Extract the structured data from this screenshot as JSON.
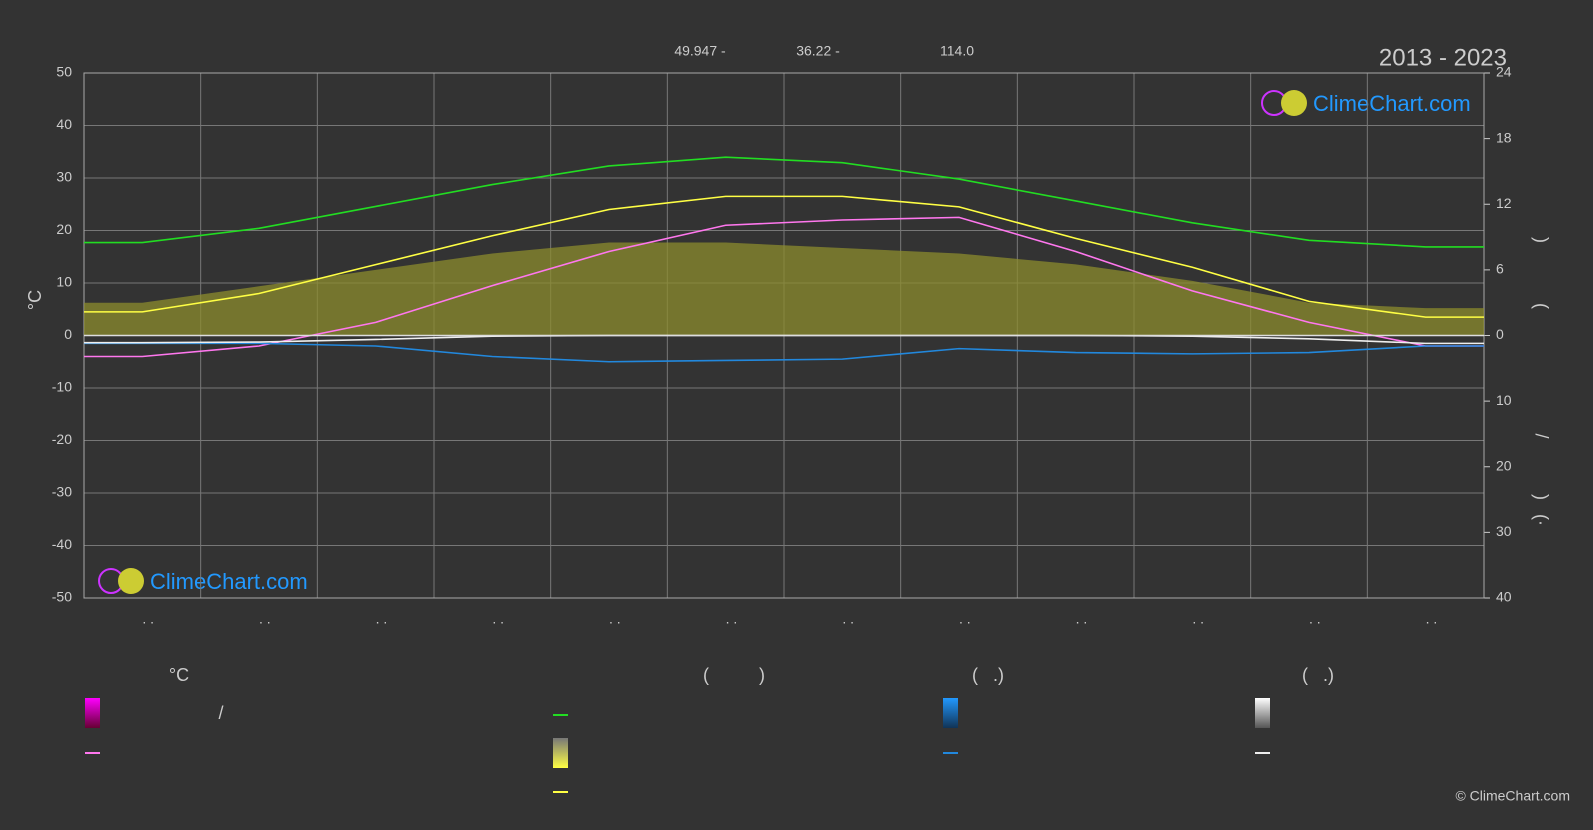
{
  "chart_data": {
    "type": "line",
    "title": "2013 - 2023",
    "info": [
      "49.947 -",
      "36.22 -",
      "114.0"
    ],
    "brand": "ClimeChart.com",
    "copyright": "© ClimeChart.com",
    "y_label": "°C",
    "y2_label_fragments": [
      ")",
      "(",
      "/",
      ")",
      "(·"
    ],
    "legend_headers": [
      "°C",
      "(          )",
      "(   .)",
      "(   .)"
    ],
    "legend_slash": "/",
    "categories": [
      ". .",
      ". .",
      ". .",
      ". .",
      ". .",
      ". .",
      ". .",
      ". .",
      ". .",
      ". .",
      ". .",
      ". ."
    ],
    "ylim": [
      -50,
      50
    ],
    "yticks": [
      -50,
      -40,
      -30,
      -20,
      -10,
      0,
      10,
      20,
      30,
      40,
      50
    ],
    "y2lim": [
      0,
      24
    ],
    "y2ticks": [
      0,
      6,
      12,
      18,
      24
    ],
    "y3lim": [
      0,
      40
    ],
    "y3ticks": [
      10,
      20,
      30,
      40
    ],
    "grid": true,
    "series": [
      {
        "color": "#8c8c2e",
        "axis": "y2",
        "area": true,
        "values": [
          3,
          4.5,
          6,
          7.5,
          8.5,
          8.5,
          8,
          7.5,
          6.5,
          5,
          3,
          2.5
        ]
      },
      {
        "color": "#22dd22",
        "axis": "y2",
        "values": [
          8.5,
          9.8,
          11.8,
          13.8,
          15.5,
          16.3,
          15.8,
          14.3,
          12.3,
          10.3,
          8.7,
          8.1
        ]
      },
      {
        "color": "#ffff44",
        "axis": "y",
        "values": [
          4.5,
          8,
          13.5,
          19,
          24,
          26.5,
          26.5,
          24.5,
          18.5,
          13,
          6.5,
          3.5
        ]
      },
      {
        "color": "#ff77ee",
        "axis": "y",
        "values": [
          -4,
          -2,
          2.5,
          9.5,
          16,
          21,
          22,
          22.5,
          16,
          8.5,
          2.5,
          -2
        ]
      },
      {
        "color": "#2288dd",
        "axis": "y3",
        "values": [
          1.2,
          1.2,
          1.6,
          3.2,
          4,
          3.8,
          3.6,
          2,
          2.6,
          2.8,
          2.6,
          1.6
        ]
      },
      {
        "color": "#eeeeee",
        "axis": "y3",
        "values": [
          1.1,
          1,
          0.6,
          0.1,
          0,
          0,
          0,
          0,
          0,
          0.1,
          0.5,
          1.2
        ]
      }
    ]
  }
}
